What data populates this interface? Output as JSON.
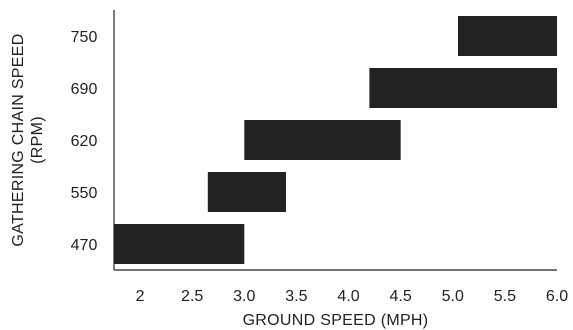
{
  "chart_data": {
    "type": "bar",
    "orientation": "horizontal-range",
    "title": "",
    "xlabel": "GROUND SPEED (MPH)",
    "ylabel_lines": [
      "GATHERING CHAIN SPEED",
      "(RPM)"
    ],
    "x_ticks": [
      2,
      2.5,
      3.0,
      3.5,
      4.0,
      4.5,
      5.0,
      5.5,
      6.0
    ],
    "x_tick_labels": [
      "2",
      "2.5",
      "3.0",
      "3.5",
      "4.0",
      "4.5",
      "5.0",
      "5.5",
      "6.0"
    ],
    "xlim": [
      1.75,
      6.0
    ],
    "categories": [
      "470",
      "550",
      "620",
      "690",
      "750"
    ],
    "ranges": [
      {
        "category": "470",
        "start": 1.75,
        "end": 3.0
      },
      {
        "category": "550",
        "start": 2.65,
        "end": 3.4
      },
      {
        "category": "620",
        "start": 3.0,
        "end": 4.5
      },
      {
        "category": "690",
        "start": 4.2,
        "end": 6.0
      },
      {
        "category": "750",
        "start": 5.05,
        "end": 6.0
      }
    ],
    "bar_color": "#222222",
    "grid": false,
    "legend": "none"
  }
}
